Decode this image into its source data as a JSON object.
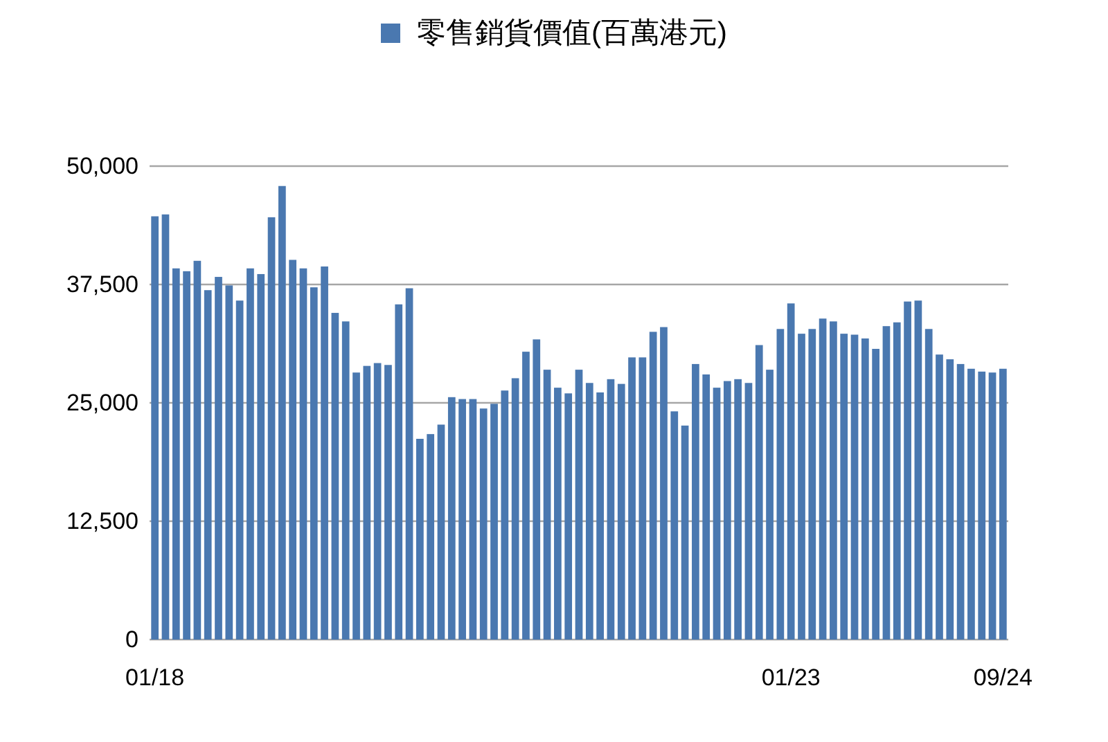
{
  "chart_data": {
    "type": "bar",
    "categories": [
      "01/18",
      null,
      null,
      null,
      null,
      null,
      null,
      null,
      null,
      null,
      null,
      null,
      null,
      null,
      null,
      null,
      null,
      null,
      null,
      null,
      null,
      null,
      null,
      null,
      null,
      null,
      null,
      null,
      null,
      null,
      null,
      null,
      null,
      null,
      null,
      null,
      null,
      null,
      null,
      null,
      null,
      null,
      null,
      null,
      null,
      null,
      null,
      null,
      null,
      null,
      null,
      null,
      null,
      null,
      null,
      null,
      null,
      null,
      null,
      null,
      "01/23",
      null,
      null,
      null,
      null,
      null,
      null,
      null,
      null,
      null,
      null,
      null,
      null,
      null,
      null,
      null,
      null,
      null,
      null,
      null,
      "09/24"
    ],
    "series": [
      {
        "name": "零售銷貨價值(百萬港元)",
        "color": "#4a78b0",
        "values": [
          44700,
          44900,
          39200,
          38900,
          40000,
          36900,
          38300,
          37400,
          35800,
          39200,
          38600,
          44600,
          47900,
          40100,
          39200,
          37200,
          39400,
          34500,
          33600,
          28200,
          28900,
          29200,
          29000,
          35400,
          37100,
          21200,
          21700,
          22700,
          25600,
          25400,
          25400,
          24400,
          24900,
          26300,
          27600,
          30400,
          31700,
          28500,
          26600,
          26000,
          28500,
          27100,
          26100,
          27500,
          27000,
          29800,
          29800,
          32500,
          33000,
          24100,
          22600,
          29100,
          28000,
          26600,
          27300,
          27500,
          27100,
          31100,
          28500,
          32800,
          35500,
          32300,
          32800,
          33900,
          33600,
          32300,
          32200,
          31800,
          30700,
          33100,
          33500,
          35700,
          35800,
          32800,
          30100,
          29600,
          29100,
          28600,
          28300,
          28200,
          28600
        ]
      }
    ],
    "ylim": [
      0,
      50000
    ],
    "yticks": [
      0,
      {
        "value": 12500,
        "label": "12,500"
      },
      {
        "value": 25000,
        "label": "25,000"
      },
      {
        "value": 37500,
        "label": "37,500"
      },
      {
        "value": 50000,
        "label": "50,000"
      }
    ],
    "grid": "y",
    "legend": "top"
  }
}
